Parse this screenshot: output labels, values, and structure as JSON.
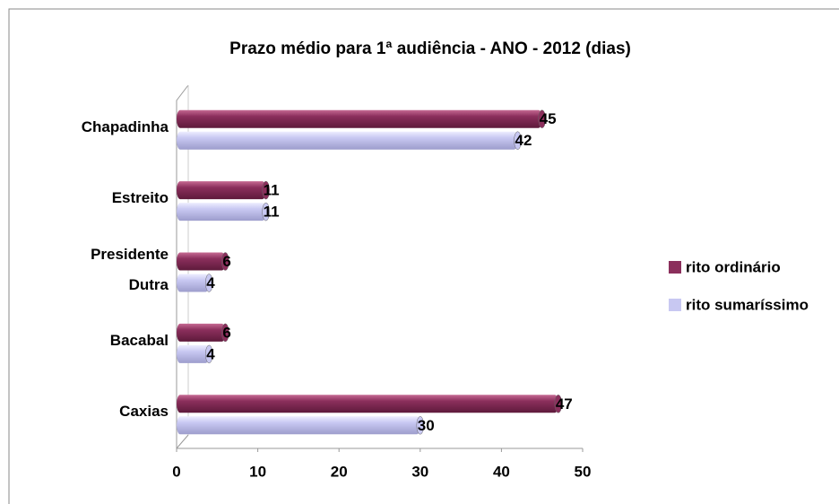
{
  "chart_data": {
    "type": "bar",
    "orientation": "horizontal",
    "title": "Prazo médio para 1ª audiência - ANO  - 2012 (dias)",
    "categories": [
      "Chapadinha",
      "Estreito",
      "Presidente Dutra",
      "Bacabal",
      "Caxias"
    ],
    "series": [
      {
        "name": "rito ordinário",
        "color": "#8b2f5c",
        "values": [
          45,
          11,
          6,
          6,
          47
        ]
      },
      {
        "name": "rito sumaríssimo",
        "color": "#c8c8f2",
        "values": [
          42,
          11,
          4,
          4,
          30
        ]
      }
    ],
    "xlim": [
      0,
      50
    ],
    "xticks": [
      0,
      10,
      20,
      30,
      40,
      50
    ],
    "legend": "right"
  }
}
